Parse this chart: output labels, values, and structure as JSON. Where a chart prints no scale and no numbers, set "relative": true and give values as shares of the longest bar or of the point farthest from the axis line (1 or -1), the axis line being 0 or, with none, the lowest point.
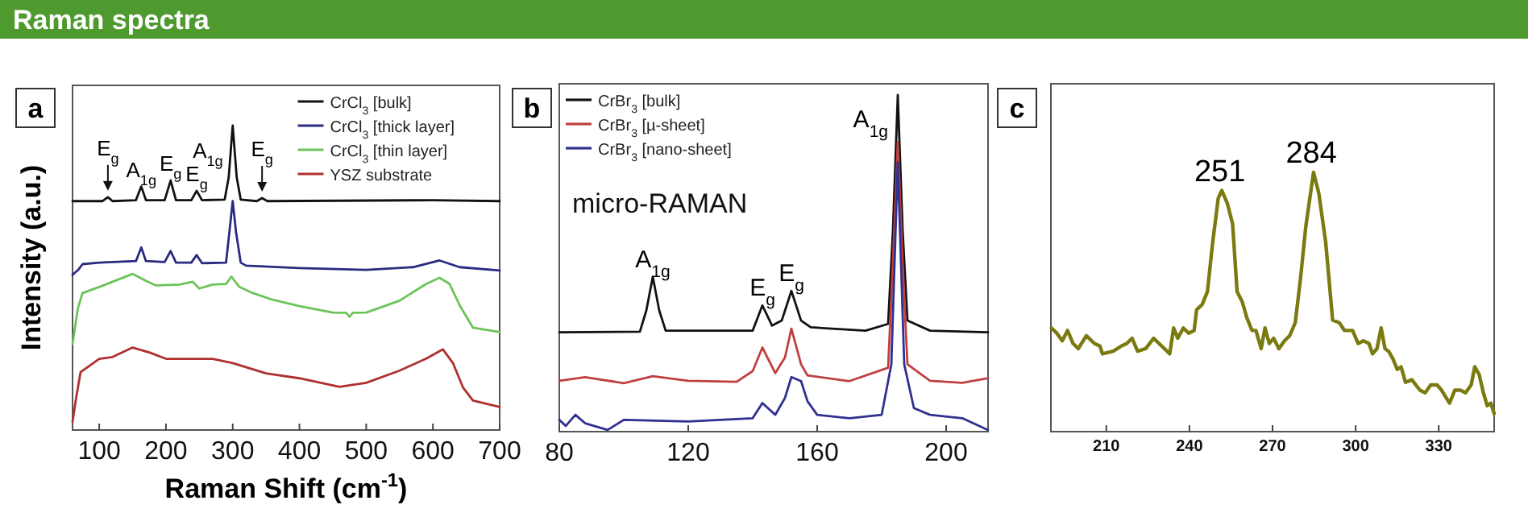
{
  "chart_data": [
    {
      "type": "line",
      "title": "a",
      "xlabel": "Raman Shift (cm$^{-1}$)",
      "ylabel": "Intensity (a.u.)",
      "relative": true,
      "xlim": [
        60,
        700
      ],
      "xticks": [
        100,
        200,
        300,
        400,
        500,
        600,
        700
      ],
      "legend": "top right",
      "grid": false,
      "series": [
        {
          "name": "CrCl$_{3}$ [bulk]",
          "color": "#111111",
          "x": [
            60,
            105,
            113,
            120,
            155,
            163,
            170,
            198,
            207,
            215,
            238,
            246,
            254,
            288,
            294,
            300,
            306,
            312,
            336,
            344,
            352,
            600,
            700
          ],
          "values": [
            0.752,
            0.752,
            0.765,
            0.752,
            0.755,
            0.8,
            0.755,
            0.755,
            0.82,
            0.755,
            0.755,
            0.786,
            0.755,
            0.757,
            0.83,
            1.0,
            0.83,
            0.757,
            0.752,
            0.762,
            0.752,
            0.755,
            0.752
          ]
        },
        {
          "name": "CrCl$_{3}$ [thick layer]",
          "color": "#2a2a80",
          "x": [
            60,
            68,
            75,
            100,
            155,
            163,
            170,
            198,
            207,
            215,
            238,
            246,
            254,
            290,
            295,
            300,
            305,
            312,
            320,
            400,
            500,
            570,
            610,
            640,
            700
          ],
          "values": [
            0.51,
            0.525,
            0.545,
            0.55,
            0.555,
            0.6,
            0.555,
            0.552,
            0.588,
            0.55,
            0.55,
            0.575,
            0.548,
            0.55,
            0.65,
            0.752,
            0.65,
            0.55,
            0.54,
            0.532,
            0.526,
            0.535,
            0.557,
            0.535,
            0.524
          ]
        },
        {
          "name": "CrCl$_{3}$ [thin layer]",
          "color": "#6cc35a",
          "x": [
            60,
            68,
            75,
            100,
            150,
            170,
            185,
            220,
            240,
            250,
            270,
            290,
            298,
            310,
            330,
            360,
            400,
            450,
            470,
            475,
            480,
            500,
            550,
            590,
            610,
            625,
            640,
            660,
            700
          ],
          "values": [
            0.283,
            0.4,
            0.45,
            0.47,
            0.513,
            0.49,
            0.475,
            0.478,
            0.487,
            0.465,
            0.478,
            0.48,
            0.504,
            0.47,
            0.45,
            0.428,
            0.407,
            0.386,
            0.385,
            0.372,
            0.385,
            0.386,
            0.425,
            0.48,
            0.5,
            0.48,
            0.41,
            0.336,
            0.322
          ]
        },
        {
          "name": "YSZ substrate",
          "color": "#b03030",
          "x": [
            60,
            65,
            72,
            100,
            120,
            150,
            175,
            200,
            270,
            300,
            350,
            400,
            460,
            500,
            550,
            590,
            615,
            630,
            645,
            660,
            700
          ],
          "values": [
            0.027,
            0.1,
            0.19,
            0.234,
            0.24,
            0.271,
            0.255,
            0.234,
            0.234,
            0.22,
            0.186,
            0.17,
            0.142,
            0.155,
            0.195,
            0.235,
            0.265,
            0.22,
            0.14,
            0.097,
            0.076
          ]
        }
      ],
      "annotations": [
        "Raman spectra",
        {
          "text": "E$_{g}$",
          "x": 113,
          "y": 0.765
        },
        {
          "text": "A$_{1g}$",
          "x": 163,
          "y": 0.8
        },
        {
          "text": "E$_{g}$",
          "x": 207,
          "y": 0.82
        },
        {
          "text": "E$_{g}$",
          "x": 246,
          "y": 0.786
        },
        {
          "text": "A$_{1g}$",
          "x": 300,
          "y": 1.0
        },
        {
          "text": "E$_{g}$",
          "x": 344,
          "y": 0.762
        }
      ]
    },
    {
      "type": "line",
      "title": "b",
      "relative": true,
      "xlim": [
        80,
        213
      ],
      "xticks": [
        80,
        120,
        160,
        200
      ],
      "legend": "top left",
      "grid": false,
      "series": [
        {
          "name": "CrBr$_{3}$ [bulk]",
          "color": "#111111",
          "x": [
            80,
            105,
            107,
            109,
            111,
            113,
            140,
            143,
            146,
            149,
            152,
            155,
            158,
            175,
            182,
            183.5,
            185,
            186.5,
            188,
            195,
            213
          ],
          "values": [
            0.295,
            0.297,
            0.36,
            0.46,
            0.36,
            0.3,
            0.3,
            0.375,
            0.315,
            0.33,
            0.418,
            0.33,
            0.31,
            0.3,
            0.32,
            0.6,
            1.0,
            0.6,
            0.33,
            0.3,
            0.295
          ]
        },
        {
          "name": "CrBr$_{3}$ [µ-sheet]",
          "color": "#c04040",
          "x": [
            80,
            88,
            100,
            109,
            120,
            135,
            140,
            143,
            147,
            150,
            152,
            155,
            157,
            170,
            182,
            183.5,
            185,
            186.5,
            188,
            195,
            205,
            213
          ],
          "values": [
            0.151,
            0.162,
            0.144,
            0.165,
            0.151,
            0.148,
            0.18,
            0.25,
            0.174,
            0.22,
            0.306,
            0.2,
            0.167,
            0.15,
            0.19,
            0.5,
            0.86,
            0.5,
            0.2,
            0.151,
            0.145,
            0.159
          ]
        },
        {
          "name": "CrBr$_{3}$ [nano-sheet]",
          "color": "#303090",
          "x": [
            80,
            82,
            85,
            88,
            95,
            100,
            120,
            140,
            143,
            147,
            150,
            152,
            155,
            157,
            160,
            170,
            180,
            183,
            185,
            187,
            190,
            195,
            205,
            213
          ],
          "values": [
            0.035,
            0.017,
            0.05,
            0.025,
            0.005,
            0.035,
            0.03,
            0.04,
            0.085,
            0.05,
            0.1,
            0.162,
            0.15,
            0.09,
            0.05,
            0.04,
            0.05,
            0.2,
            0.8,
            0.2,
            0.07,
            0.05,
            0.04,
            0.005
          ]
        }
      ],
      "annotations": [
        "micro-RAMAN",
        {
          "text": "A$_{1g}$",
          "x": 109,
          "y": 0.46
        },
        {
          "text": "E$_{g}$",
          "x": 143,
          "y": 0.375
        },
        {
          "text": "E$_{g}$",
          "x": 152,
          "y": 0.418
        },
        {
          "text": "A$_{1g}$",
          "x": 185,
          "y": 1.0
        }
      ]
    },
    {
      "type": "line",
      "title": "c",
      "relative": true,
      "xlim": [
        190,
        350
      ],
      "xticks": [
        210,
        240,
        270,
        300,
        330
      ],
      "grid": false,
      "series": [
        {
          "color": "#7a7a10",
          "x": [
            190.2,
            192.1,
            194.1,
            196,
            198,
            199.9,
            202.8,
            205.7,
            207.7,
            208.6,
            212.5,
            215.4,
            217.4,
            219.3,
            221.3,
            224.2,
            227.1,
            230,
            232.9,
            234.3,
            235.8,
            237.8,
            239.7,
            241.7,
            242.6,
            244.6,
            246.5,
            248.4,
            250.4,
            251.7,
            253.7,
            255.6,
            257.2,
            259.1,
            260.7,
            262.6,
            264,
            265.9,
            267.3,
            268.8,
            270.4,
            272.3,
            274.3,
            276.2,
            278.2,
            280.1,
            282,
            284.8,
            286.7,
            289.2,
            291.7,
            294.1,
            296,
            298.9,
            300.9,
            302.8,
            304.8,
            306.1,
            307.7,
            309.2,
            310.6,
            311.9,
            313.5,
            315,
            316.4,
            318,
            320.3,
            323.2,
            325.1,
            327.1,
            329.4,
            331,
            333.9,
            335.8,
            337.8,
            339.7,
            341.7,
            343,
            344.6,
            346.1,
            347.5,
            348.8,
            350
          ],
          "values": [
            0.4,
            0.38,
            0.35,
            0.39,
            0.34,
            0.32,
            0.37,
            0.34,
            0.33,
            0.3,
            0.31,
            0.33,
            0.34,
            0.36,
            0.31,
            0.32,
            0.36,
            0.33,
            0.3,
            0.4,
            0.36,
            0.4,
            0.38,
            0.39,
            0.47,
            0.49,
            0.54,
            0.73,
            0.9,
            0.93,
            0.88,
            0.8,
            0.54,
            0.5,
            0.44,
            0.39,
            0.39,
            0.32,
            0.4,
            0.34,
            0.36,
            0.32,
            0.35,
            0.37,
            0.42,
            0.59,
            0.79,
            1.0,
            0.92,
            0.73,
            0.43,
            0.42,
            0.39,
            0.39,
            0.34,
            0.35,
            0.34,
            0.3,
            0.32,
            0.4,
            0.32,
            0.31,
            0.28,
            0.24,
            0.25,
            0.19,
            0.2,
            0.16,
            0.15,
            0.18,
            0.18,
            0.16,
            0.11,
            0.16,
            0.16,
            0.15,
            0.18,
            0.25,
            0.22,
            0.15,
            0.1,
            0.11,
            0.07
          ]
        }
      ],
      "annotations": [
        {
          "text": "251",
          "x": 251,
          "y": 0.93
        },
        {
          "text": "284",
          "x": 284,
          "y": 1.0
        }
      ]
    }
  ]
}
